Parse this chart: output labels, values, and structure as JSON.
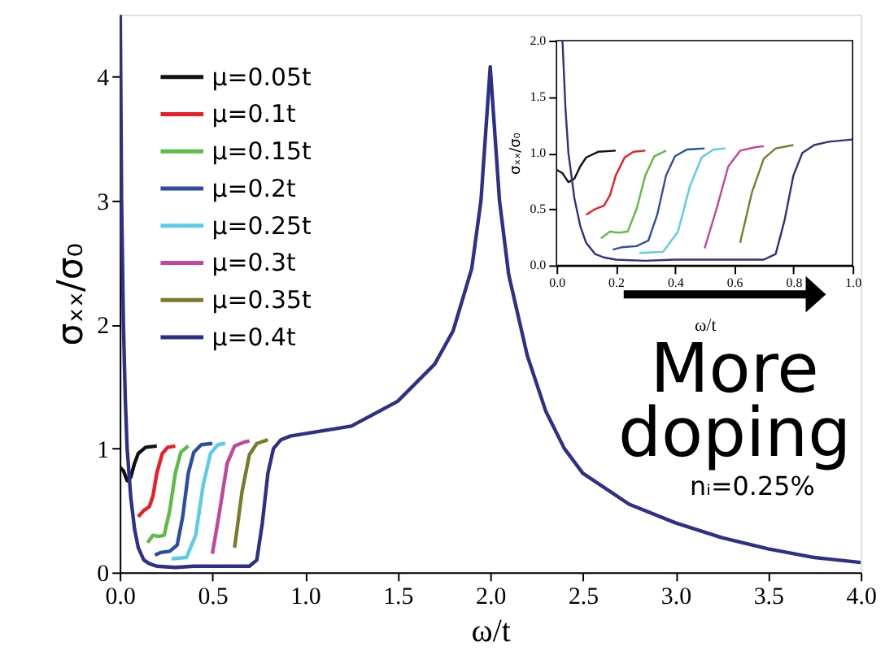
{
  "chart_data": [
    {
      "type": "line",
      "xlabel": "ω/t",
      "ylabel": "σₓₓ/σ₀",
      "xlim": [
        0,
        4
      ],
      "ylim": [
        0,
        4.5
      ],
      "xticks": [
        {
          "value": 0,
          "label": "0.0"
        },
        0.5,
        {
          "value": 1,
          "label": "1.0"
        },
        1.5,
        {
          "value": 2,
          "label": "2.0"
        },
        2.5,
        {
          "value": 3,
          "label": "3.0"
        },
        3.5,
        {
          "value": 4,
          "label": "4.0"
        }
      ],
      "yticks": [
        0,
        1,
        2,
        3,
        4
      ],
      "grid": false,
      "legend": "top left",
      "annotations": [
        "More doping",
        "nᵢ=0.25%"
      ],
      "series": [
        {
          "name": "μ=0.05t",
          "color": "#111111",
          "x": [
            0,
            0.02,
            0.04,
            0.06,
            0.08,
            0.1,
            0.14,
            0.2
          ],
          "values": [
            0.85,
            0.82,
            0.74,
            0.77,
            0.88,
            0.96,
            1.01,
            1.02
          ]
        },
        {
          "name": "μ=0.1t",
          "color": "#ee1c24",
          "x": [
            0.1,
            0.13,
            0.16,
            0.18,
            0.2,
            0.23,
            0.26,
            0.3
          ],
          "values": [
            0.45,
            0.5,
            0.53,
            0.62,
            0.8,
            0.96,
            1.01,
            1.02
          ]
        },
        {
          "name": "μ=0.15t",
          "color": "#5dbb46",
          "x": [
            0.15,
            0.18,
            0.21,
            0.24,
            0.27,
            0.3,
            0.33,
            0.37
          ],
          "values": [
            0.24,
            0.3,
            0.29,
            0.3,
            0.5,
            0.8,
            0.97,
            1.02
          ]
        },
        {
          "name": "μ=0.2t",
          "color": "#2b4ea2",
          "x": [
            0.19,
            0.22,
            0.27,
            0.31,
            0.34,
            0.37,
            0.4,
            0.44,
            0.5
          ],
          "values": [
            0.14,
            0.16,
            0.17,
            0.22,
            0.45,
            0.8,
            0.97,
            1.03,
            1.04
          ]
        },
        {
          "name": "μ=0.25t",
          "color": "#5ccbe6",
          "x": [
            0.28,
            0.36,
            0.41,
            0.45,
            0.49,
            0.53,
            0.57
          ],
          "values": [
            0.11,
            0.12,
            0.3,
            0.7,
            0.96,
            1.03,
            1.04
          ]
        },
        {
          "name": "μ=0.3t",
          "color": "#c2479c",
          "x": [
            0.5,
            0.54,
            0.58,
            0.62,
            0.67,
            0.7
          ],
          "values": [
            0.15,
            0.5,
            0.88,
            1.02,
            1.05,
            1.06
          ]
        },
        {
          "name": "μ=0.35t",
          "color": "#7a7a2a",
          "x": [
            0.62,
            0.66,
            0.7,
            0.74,
            0.8
          ],
          "values": [
            0.2,
            0.65,
            0.95,
            1.04,
            1.07
          ]
        },
        {
          "name": "μ=0.4t",
          "color": "#2e3085",
          "x": [
            0.003,
            0.01,
            0.02,
            0.03,
            0.04,
            0.06,
            0.08,
            0.1,
            0.13,
            0.16,
            0.2,
            0.3,
            0.4,
            0.5,
            0.6,
            0.7,
            0.74,
            0.77,
            0.8,
            0.83,
            0.87,
            0.92,
            1.0,
            1.25,
            1.5,
            1.7,
            1.8,
            1.9,
            1.95,
            2.0,
            2.05,
            2.1,
            2.2,
            2.3,
            2.4,
            2.5,
            2.75,
            3.0,
            3.25,
            3.5,
            3.75,
            4.0
          ],
          "values": [
            4.5,
            3.0,
            2.0,
            1.4,
            1.0,
            0.6,
            0.35,
            0.2,
            0.1,
            0.07,
            0.05,
            0.04,
            0.05,
            0.05,
            0.05,
            0.05,
            0.1,
            0.4,
            0.8,
            1.0,
            1.07,
            1.1,
            1.12,
            1.18,
            1.38,
            1.68,
            1.95,
            2.45,
            3.0,
            4.08,
            3.0,
            2.4,
            1.75,
            1.3,
            1.0,
            0.8,
            0.55,
            0.4,
            0.28,
            0.19,
            0.12,
            0.08
          ]
        }
      ]
    },
    {
      "type": "line",
      "xlabel": "ω/t",
      "ylabel": "σₓₓ/σ₀",
      "xlim": [
        0,
        1
      ],
      "ylim": [
        0,
        2
      ],
      "xticks": [
        {
          "value": 0,
          "label": "0.0"
        },
        0.2,
        0.4,
        0.6,
        0.8,
        {
          "value": 1,
          "label": "1.0"
        }
      ],
      "yticks": [
        {
          "value": 0,
          "label": "0.0"
        },
        0.5,
        {
          "value": 1,
          "label": "1.0"
        },
        1.5,
        {
          "value": 2,
          "label": "2.0"
        }
      ],
      "grid": false,
      "series": [
        {
          "color": "#111111",
          "x": [
            0,
            0.02,
            0.04,
            0.06,
            0.08,
            0.1,
            0.14,
            0.2
          ],
          "values": [
            0.85,
            0.82,
            0.74,
            0.77,
            0.88,
            0.96,
            1.01,
            1.02
          ]
        },
        {
          "color": "#ee1c24",
          "x": [
            0.1,
            0.13,
            0.16,
            0.18,
            0.2,
            0.23,
            0.26,
            0.3
          ],
          "values": [
            0.45,
            0.5,
            0.53,
            0.62,
            0.8,
            0.96,
            1.01,
            1.02
          ]
        },
        {
          "color": "#5dbb46",
          "x": [
            0.15,
            0.18,
            0.21,
            0.24,
            0.27,
            0.3,
            0.33,
            0.37
          ],
          "values": [
            0.24,
            0.3,
            0.29,
            0.3,
            0.5,
            0.8,
            0.97,
            1.02
          ]
        },
        {
          "color": "#2b4ea2",
          "x": [
            0.19,
            0.22,
            0.27,
            0.31,
            0.34,
            0.37,
            0.4,
            0.44,
            0.5
          ],
          "values": [
            0.14,
            0.16,
            0.17,
            0.22,
            0.45,
            0.8,
            0.97,
            1.03,
            1.04
          ]
        },
        {
          "color": "#5ccbe6",
          "x": [
            0.28,
            0.36,
            0.41,
            0.45,
            0.49,
            0.53,
            0.57
          ],
          "values": [
            0.11,
            0.12,
            0.3,
            0.7,
            0.96,
            1.03,
            1.04
          ]
        },
        {
          "color": "#c2479c",
          "x": [
            0.5,
            0.54,
            0.58,
            0.62,
            0.67,
            0.7
          ],
          "values": [
            0.15,
            0.5,
            0.88,
            1.02,
            1.05,
            1.06
          ]
        },
        {
          "color": "#7a7a2a",
          "x": [
            0.62,
            0.66,
            0.7,
            0.74,
            0.8
          ],
          "values": [
            0.2,
            0.65,
            0.95,
            1.04,
            1.07
          ]
        },
        {
          "color": "#2e3085",
          "x": [
            0.02,
            0.03,
            0.04,
            0.06,
            0.08,
            0.1,
            0.13,
            0.16,
            0.2,
            0.3,
            0.4,
            0.5,
            0.6,
            0.7,
            0.74,
            0.77,
            0.8,
            0.83,
            0.87,
            0.92,
            1.0
          ],
          "values": [
            2.0,
            1.4,
            1.0,
            0.6,
            0.35,
            0.2,
            0.1,
            0.07,
            0.05,
            0.04,
            0.05,
            0.05,
            0.05,
            0.05,
            0.1,
            0.4,
            0.8,
            1.0,
            1.07,
            1.1,
            1.12
          ]
        }
      ]
    }
  ]
}
